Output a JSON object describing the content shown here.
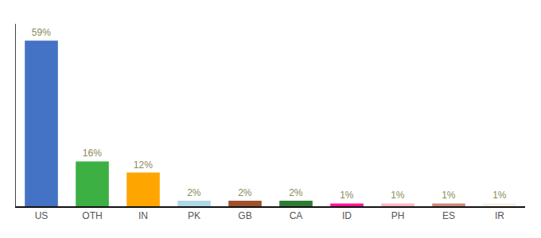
{
  "chart_data": {
    "type": "bar",
    "categories": [
      "US",
      "OTH",
      "IN",
      "PK",
      "GB",
      "CA",
      "ID",
      "PH",
      "ES",
      "IR"
    ],
    "values": [
      59,
      16,
      12,
      2,
      2,
      2,
      1,
      1,
      1,
      1
    ],
    "value_labels": [
      "59%",
      "16%",
      "12%",
      "2%",
      "2%",
      "2%",
      "1%",
      "1%",
      "1%",
      "1%"
    ],
    "colors": [
      "#4472c4",
      "#3cb043",
      "#ffa500",
      "#add8e6",
      "#a0522d",
      "#2e7d32",
      "#ff1493",
      "#ffb6c1",
      "#cd8a7a",
      "#f5f0e0"
    ],
    "ylim": [
      0,
      65
    ],
    "data_labels": true,
    "tick_labels": "x",
    "grid": false
  }
}
